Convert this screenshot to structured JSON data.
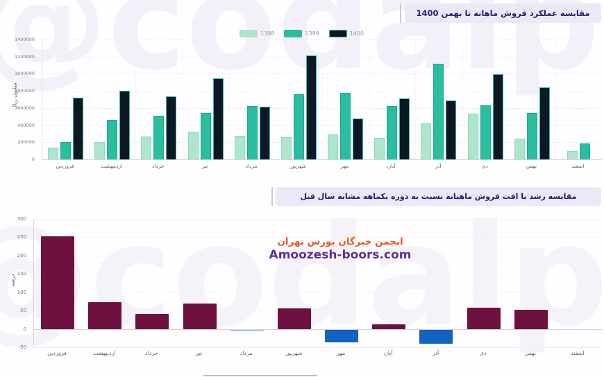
{
  "page": {
    "bg_watermark_text": "@codalplus.ir"
  },
  "top_section": {
    "title": "مقایسه عملکرد فروش ماهانه تا بهمن 1400"
  },
  "bottom_section": {
    "title": "مقایسه رشد یا افت فروش ماهیانه نسبت به دوره یکماهه مشابه سال قبل"
  },
  "overlay_watermark": {
    "line1": "انجمن خبرگان بورس تهران",
    "line2": "Amoozesh-boors.com"
  },
  "chart_data": [
    {
      "type": "bar",
      "title": "مقایسه عملکرد فروش ماهانه تا بهمن 1400",
      "ylabel": "میلیون ریال",
      "xlabel": "",
      "ylim": [
        0,
        1400000
      ],
      "yticks": [
        0,
        200000,
        400000,
        600000,
        800000,
        1000000,
        1200000,
        1400000
      ],
      "grid": true,
      "legend_position": "top",
      "categories": [
        "فروردین",
        "اردیبهشت",
        "خرداد",
        "تیر",
        "مرداد",
        "شهریور",
        "مهر",
        "آبان",
        "آذر",
        "دی",
        "بهمن",
        "اسفند"
      ],
      "series": [
        {
          "name": "1398",
          "color": "#aee5cd",
          "border": "#8fd9ba",
          "values": [
            140000,
            200000,
            270000,
            320000,
            275000,
            260000,
            290000,
            250000,
            420000,
            535000,
            245000,
            95000
          ]
        },
        {
          "name": "1399",
          "color": "#2abda0",
          "border": "#1fa78c",
          "values": [
            200000,
            460000,
            510000,
            545000,
            620000,
            760000,
            775000,
            620000,
            1115000,
            630000,
            540000,
            190000
          ]
        },
        {
          "name": "1400",
          "color": "#0d1726",
          "border": "#2abda0",
          "values": [
            720000,
            800000,
            735000,
            945000,
            615000,
            1210000,
            480000,
            715000,
            690000,
            995000,
            840000,
            null
          ]
        }
      ]
    },
    {
      "type": "bar",
      "title": "مقایسه رشد یا افت فروش ماهیانه نسبت به دوره یکماهه مشابه سال قبل",
      "ylabel": "درصد",
      "xlabel": "",
      "ylim": [
        -50,
        300
      ],
      "yticks": [
        -50,
        0,
        50,
        100,
        150,
        200,
        250,
        300
      ],
      "grid": true,
      "positive_color": "#6e1040",
      "negative_color": "#1261c4",
      "near_zero_color": "#9fc6ea",
      "categories": [
        "فروردین",
        "اردیبهشت",
        "خرداد",
        "تیر",
        "مرداد",
        "شهریور",
        "مهر",
        "آبان",
        "آذر",
        "دی",
        "بهمن",
        "اسفند"
      ],
      "values": [
        252,
        73,
        40,
        70,
        -1,
        56,
        -35,
        13,
        -38,
        57,
        52,
        null
      ]
    }
  ]
}
